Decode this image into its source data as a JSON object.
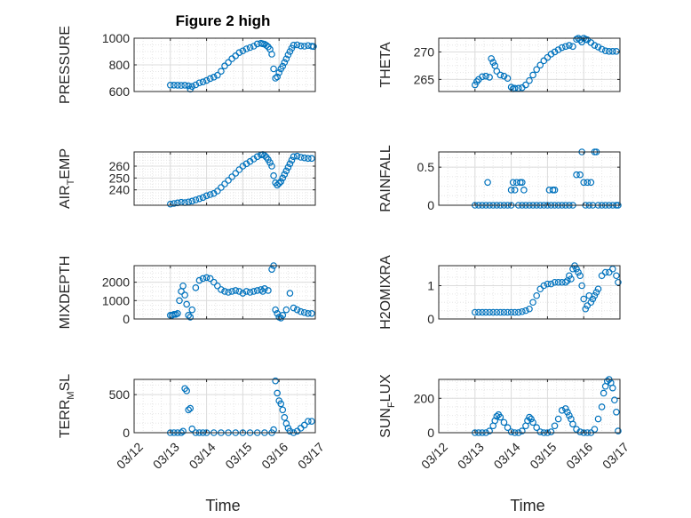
{
  "figure_title": "Figure 2 high",
  "xlabel": "Time",
  "x_ticks": [
    "03/12",
    "03/13",
    "03/14",
    "03/15",
    "03/16",
    "03/17"
  ],
  "marker_color": "#0072BD",
  "chart_data": [
    {
      "type": "scatter",
      "ylabel_parts": [
        {
          "t": "PRESSURE"
        }
      ],
      "xlim": [
        0,
        5
      ],
      "ylim": [
        600,
        1000
      ],
      "yticks": [
        600,
        800,
        1000
      ],
      "x": [
        1.0,
        1.1,
        1.2,
        1.3,
        1.4,
        1.5,
        1.55,
        1.6,
        1.7,
        1.8,
        1.9,
        2.0,
        2.1,
        2.2,
        2.3,
        2.4,
        2.5,
        2.6,
        2.7,
        2.8,
        2.9,
        3.0,
        3.1,
        3.2,
        3.3,
        3.4,
        3.5,
        3.55,
        3.6,
        3.65,
        3.7,
        3.75,
        3.8,
        3.85,
        3.9,
        3.95,
        4.0,
        4.05,
        4.1,
        4.15,
        4.2,
        4.25,
        4.3,
        4.35,
        4.4,
        4.5,
        4.6,
        4.7,
        4.8,
        4.9,
        4.95
      ],
      "y": [
        648,
        648,
        647,
        646,
        647,
        643,
        618,
        638,
        650,
        665,
        672,
        683,
        697,
        708,
        722,
        752,
        792,
        818,
        846,
        868,
        892,
        905,
        920,
        930,
        940,
        957,
        962,
        958,
        955,
        946,
        935,
        917,
        880,
        770,
        700,
        710,
        742,
        770,
        790,
        818,
        845,
        875,
        900,
        925,
        948,
        950,
        942,
        940,
        945,
        940,
        938
      ]
    },
    {
      "type": "scatter",
      "ylabel_parts": [
        {
          "t": "THETA"
        }
      ],
      "xlim": [
        0,
        5
      ],
      "ylim": [
        262.8,
        272.5
      ],
      "yticks": [
        265,
        270
      ],
      "x": [
        1.0,
        1.05,
        1.1,
        1.2,
        1.3,
        1.4,
        1.45,
        1.5,
        1.55,
        1.6,
        1.7,
        1.8,
        1.9,
        2.0,
        2.05,
        2.1,
        2.2,
        2.3,
        2.4,
        2.5,
        2.6,
        2.7,
        2.8,
        2.9,
        3.0,
        3.1,
        3.2,
        3.3,
        3.4,
        3.5,
        3.6,
        3.7,
        3.8,
        3.85,
        3.9,
        3.95,
        4.0,
        4.05,
        4.1,
        4.2,
        4.3,
        4.4,
        4.5,
        4.6,
        4.7,
        4.8,
        4.9
      ],
      "y": [
        264,
        264.6,
        265,
        265.5,
        265.6,
        265.4,
        268.8,
        268.1,
        267.5,
        266.5,
        265.8,
        265.6,
        265.2,
        263.6,
        263.3,
        263.4,
        263.4,
        263.5,
        264,
        264.8,
        265.8,
        266.8,
        267.6,
        268.4,
        269,
        269.6,
        270,
        270.4,
        270.8,
        271,
        271.2,
        271,
        272.3,
        272.5,
        272.2,
        271.8,
        272.5,
        272.3,
        272.2,
        271.7,
        271.2,
        270.9,
        270.5,
        270.2,
        270.1,
        270.1,
        270.1
      ]
    },
    {
      "type": "scatter",
      "ylabel_parts": [
        {
          "t": "AIR"
        },
        {
          "t": "T",
          "sub": true
        },
        {
          "t": "EMP"
        }
      ],
      "xlim": [
        0,
        5
      ],
      "ylim": [
        227,
        272
      ],
      "yticks": [
        240,
        250,
        260
      ],
      "x": [
        1.0,
        1.1,
        1.2,
        1.3,
        1.4,
        1.5,
        1.6,
        1.7,
        1.8,
        1.9,
        2.0,
        2.1,
        2.2,
        2.3,
        2.4,
        2.5,
        2.6,
        2.7,
        2.8,
        2.9,
        3.0,
        3.1,
        3.2,
        3.3,
        3.4,
        3.5,
        3.55,
        3.6,
        3.65,
        3.7,
        3.75,
        3.8,
        3.85,
        3.9,
        3.95,
        4.0,
        4.05,
        4.1,
        4.15,
        4.2,
        4.25,
        4.3,
        4.35,
        4.4,
        4.5,
        4.6,
        4.7,
        4.8,
        4.9
      ],
      "y": [
        228,
        228.5,
        229,
        229.5,
        229.2,
        229.8,
        230.5,
        231.5,
        232.5,
        233.5,
        235,
        236,
        237,
        239,
        242,
        245,
        248,
        251,
        254,
        257,
        260,
        262,
        264,
        266,
        268,
        269.5,
        269.8,
        269,
        267.5,
        265.5,
        263,
        260,
        252,
        246,
        244,
        245.5,
        247,
        250,
        253,
        256,
        259,
        262,
        265,
        268,
        268.5,
        267.5,
        267,
        266.5,
        266.5
      ]
    },
    {
      "type": "scatter",
      "ylabel_parts": [
        {
          "t": "RAINFALL"
        }
      ],
      "xlim": [
        0,
        5
      ],
      "ylim": [
        0,
        0.7
      ],
      "yticks": [
        0,
        0.5
      ],
      "x": [
        1.0,
        1.1,
        1.2,
        1.3,
        1.35,
        1.4,
        1.5,
        1.6,
        1.7,
        1.8,
        1.9,
        2.0,
        2.0,
        2.05,
        2.1,
        2.15,
        2.2,
        2.25,
        2.3,
        2.3,
        2.35,
        2.4,
        2.5,
        2.6,
        2.7,
        2.8,
        2.9,
        3.0,
        3.05,
        3.1,
        3.15,
        3.2,
        3.2,
        3.3,
        3.4,
        3.5,
        3.6,
        3.7,
        3.8,
        3.9,
        3.95,
        4.0,
        4.05,
        4.1,
        4.15,
        4.2,
        4.25,
        4.3,
        4.35,
        4.4,
        4.5,
        4.6,
        4.7,
        4.8,
        4.9,
        4.95
      ],
      "y": [
        0,
        0,
        0,
        0,
        0.3,
        0,
        0,
        0,
        0,
        0,
        0,
        0,
        0.2,
        0.3,
        0.2,
        0.3,
        0,
        0.3,
        0.3,
        0,
        0.2,
        0,
        0,
        0,
        0,
        0,
        0,
        0,
        0.2,
        0,
        0.2,
        0.2,
        0,
        0,
        0,
        0,
        0,
        0,
        0.4,
        0.4,
        0.7,
        0.3,
        0,
        0.3,
        0,
        0.3,
        0,
        0.7,
        0.7,
        0,
        0,
        0,
        0,
        0,
        0,
        0
      ]
    },
    {
      "type": "scatter",
      "ylabel_parts": [
        {
          "t": "MIXDEPTH"
        }
      ],
      "xlim": [
        0,
        5
      ],
      "ylim": [
        0,
        2900
      ],
      "yticks": [
        0,
        1000,
        2000
      ],
      "x": [
        1.0,
        1.05,
        1.1,
        1.15,
        1.2,
        1.25,
        1.3,
        1.35,
        1.4,
        1.45,
        1.5,
        1.55,
        1.6,
        1.7,
        1.8,
        1.9,
        2.0,
        2.1,
        2.2,
        2.3,
        2.4,
        2.5,
        2.6,
        2.7,
        2.8,
        2.9,
        3.0,
        3.1,
        3.2,
        3.3,
        3.4,
        3.5,
        3.55,
        3.6,
        3.7,
        3.8,
        3.85,
        3.9,
        3.95,
        4.0,
        4.05,
        4.1,
        4.2,
        4.3,
        4.4,
        4.5,
        4.6,
        4.7,
        4.8,
        4.9
      ],
      "y": [
        200,
        200,
        250,
        250,
        300,
        1000,
        1500,
        1800,
        1300,
        800,
        200,
        100,
        500,
        1700,
        2100,
        2200,
        2250,
        2200,
        2000,
        1800,
        1600,
        1500,
        1450,
        1500,
        1550,
        1500,
        1400,
        1500,
        1450,
        1500,
        1550,
        1600,
        1500,
        1650,
        1550,
        2700,
        2900,
        500,
        300,
        100,
        50,
        200,
        500,
        1400,
        600,
        500,
        400,
        350,
        300,
        300
      ]
    },
    {
      "type": "scatter",
      "ylabel_parts": [
        {
          "t": "H2OMIXRA"
        }
      ],
      "xlim": [
        0,
        5
      ],
      "ylim": [
        0,
        1.6
      ],
      "yticks": [
        0,
        1
      ],
      "x": [
        1.0,
        1.1,
        1.2,
        1.3,
        1.4,
        1.5,
        1.6,
        1.7,
        1.8,
        1.9,
        2.0,
        2.1,
        2.2,
        2.3,
        2.4,
        2.5,
        2.6,
        2.7,
        2.8,
        2.9,
        3.0,
        3.1,
        3.2,
        3.3,
        3.4,
        3.5,
        3.55,
        3.6,
        3.65,
        3.7,
        3.75,
        3.8,
        3.85,
        3.9,
        3.95,
        4.0,
        4.05,
        4.1,
        4.15,
        4.2,
        4.25,
        4.3,
        4.35,
        4.4,
        4.5,
        4.6,
        4.7,
        4.8,
        4.9,
        4.95
      ],
      "y": [
        0.2,
        0.2,
        0.2,
        0.2,
        0.2,
        0.2,
        0.2,
        0.2,
        0.2,
        0.2,
        0.2,
        0.2,
        0.2,
        0.22,
        0.25,
        0.3,
        0.5,
        0.7,
        0.9,
        1.0,
        1.05,
        1.05,
        1.1,
        1.1,
        1.1,
        1.1,
        1.15,
        1.3,
        1.2,
        1.5,
        1.6,
        1.5,
        1.4,
        1.3,
        1.0,
        0.6,
        0.3,
        0.4,
        0.7,
        0.5,
        0.6,
        0.7,
        0.8,
        0.9,
        1.3,
        1.4,
        1.4,
        1.5,
        1.3,
        1.1
      ]
    },
    {
      "type": "scatter",
      "ylabel_parts": [
        {
          "t": "TERR"
        },
        {
          "t": "M",
          "sub": true
        },
        {
          "t": "SL"
        }
      ],
      "xlim": [
        0,
        5
      ],
      "ylim": [
        0,
        700
      ],
      "yticks": [
        0,
        500
      ],
      "x": [
        1.0,
        1.1,
        1.2,
        1.3,
        1.35,
        1.4,
        1.45,
        1.5,
        1.55,
        1.6,
        1.7,
        1.8,
        1.9,
        2.0,
        2.2,
        2.4,
        2.6,
        2.8,
        3.0,
        3.2,
        3.4,
        3.6,
        3.8,
        3.85,
        3.9,
        3.95,
        4.0,
        4.05,
        4.1,
        4.15,
        4.2,
        4.25,
        4.3,
        4.4,
        4.5,
        4.6,
        4.7,
        4.8,
        4.9
      ],
      "y": [
        0,
        0,
        0,
        0,
        20,
        580,
        550,
        300,
        320,
        50,
        0,
        0,
        0,
        0,
        0,
        0,
        0,
        0,
        0,
        0,
        0,
        0,
        0,
        40,
        680,
        520,
        420,
        380,
        300,
        200,
        120,
        60,
        20,
        0,
        20,
        60,
        100,
        150,
        150
      ]
    },
    {
      "type": "scatter",
      "ylabel_parts": [
        {
          "t": "SUN"
        },
        {
          "t": "F",
          "sub": true
        },
        {
          "t": "LUX"
        }
      ],
      "xlim": [
        0,
        5
      ],
      "ylim": [
        0,
        310
      ],
      "yticks": [
        0,
        200
      ],
      "x": [
        1.0,
        1.1,
        1.2,
        1.3,
        1.4,
        1.5,
        1.55,
        1.6,
        1.65,
        1.7,
        1.8,
        1.9,
        2.0,
        2.1,
        2.2,
        2.3,
        2.4,
        2.45,
        2.5,
        2.55,
        2.6,
        2.7,
        2.8,
        2.9,
        3.0,
        3.1,
        3.2,
        3.3,
        3.4,
        3.5,
        3.55,
        3.6,
        3.65,
        3.7,
        3.8,
        3.9,
        4.0,
        4.1,
        4.2,
        4.3,
        4.4,
        4.5,
        4.55,
        4.6,
        4.65,
        4.7,
        4.75,
        4.8,
        4.85,
        4.9,
        4.95
      ],
      "y": [
        0,
        0,
        0,
        0,
        10,
        40,
        70,
        95,
        105,
        90,
        60,
        30,
        5,
        0,
        0,
        10,
        40,
        70,
        90,
        80,
        60,
        30,
        5,
        0,
        0,
        5,
        40,
        80,
        130,
        140,
        120,
        100,
        80,
        50,
        20,
        5,
        0,
        0,
        0,
        20,
        80,
        150,
        230,
        270,
        300,
        310,
        290,
        260,
        190,
        120,
        10
      ]
    }
  ]
}
